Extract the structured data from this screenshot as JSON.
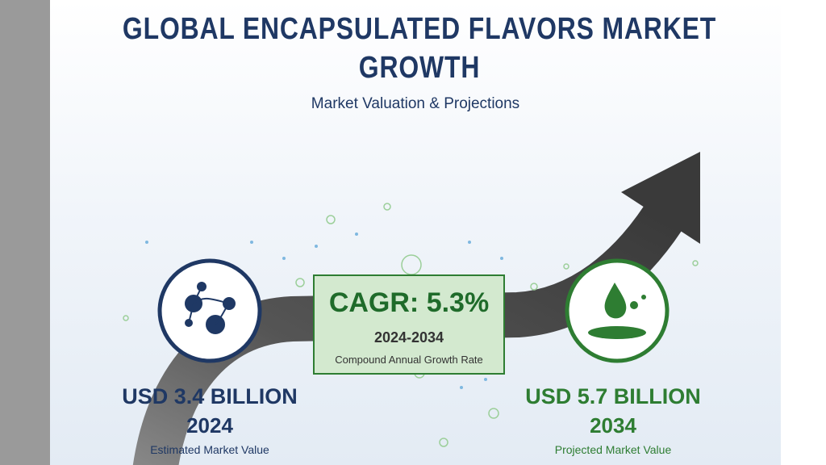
{
  "header": {
    "title": "GLOBAL ENCAPSULATED FLAVORS MARKET GROWTH",
    "subtitle": "Market Valuation & Projections"
  },
  "cagr": {
    "label": "CAGR: 5.3%",
    "period": "2024-2034",
    "description": "Compound Annual Growth Rate"
  },
  "start": {
    "value": "USD 3.4 BILLION",
    "year": "2024",
    "caption": "Estimated Market Value"
  },
  "end": {
    "value": "USD 5.7 BILLION",
    "year": "2034",
    "caption": "Projected Market Value"
  }
}
